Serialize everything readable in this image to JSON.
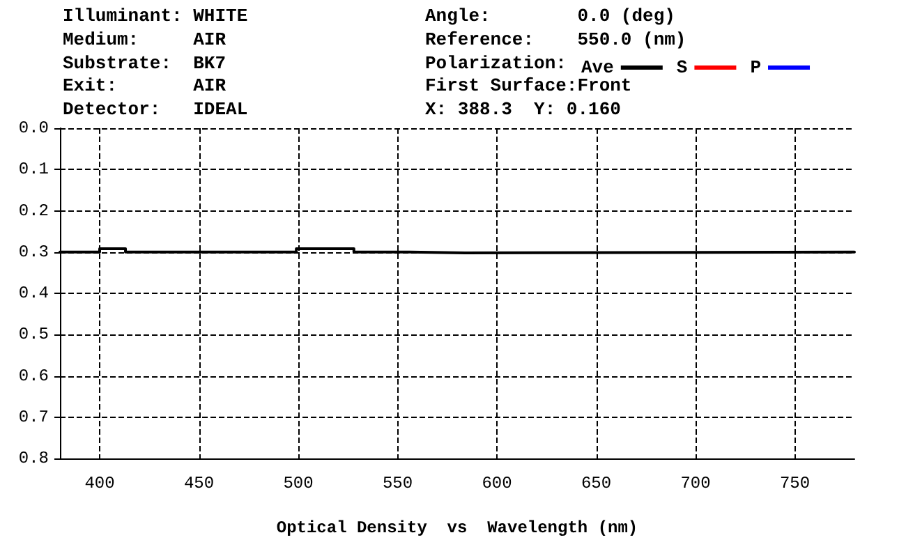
{
  "chart_data": {
    "type": "step",
    "xlabel": "Optical Density  vs  Wavelength (nm)",
    "legend_title": "Polarization:",
    "annotations": [
      "Illuminant: WHITE",
      "Medium:     AIR",
      "Substrate:  BK7",
      "Exit:       AIR",
      "Detector:   IDEAL",
      "Angle:        0.0 (deg)",
      "Reference:    550.0 (nm)",
      "First Surface:Front",
      "X: 388.3  Y: 0.160"
    ],
    "x": [
      380,
      400,
      413,
      499,
      528,
      556,
      584,
      780
    ],
    "series": [
      {
        "name": "Ave",
        "color": "#000000",
        "values": [
          0.3,
          0.292,
          0.3,
          0.292,
          0.3,
          0.302,
          0.3,
          0.3
        ]
      },
      {
        "name": "S",
        "color": "#ff0000",
        "values": [
          null,
          null,
          null,
          null,
          null,
          null,
          null,
          null
        ]
      },
      {
        "name": "P",
        "color": "#0000ff",
        "values": [
          null,
          null,
          null,
          null,
          null,
          null,
          null,
          null
        ]
      }
    ],
    "xlim": [
      380,
      780
    ],
    "xticks": [
      400,
      450,
      500,
      550,
      600,
      650,
      700,
      750
    ],
    "ylim": [
      0.8,
      0.0
    ],
    "yticks": [
      {
        "value": 0,
        "label": "0.0"
      },
      {
        "value": 0.1,
        "label": "0.1"
      },
      {
        "value": 0.2,
        "label": "0.2"
      },
      {
        "value": 0.3,
        "label": "0.3"
      },
      {
        "value": 0.4,
        "label": "0.4"
      },
      {
        "value": 0.5,
        "label": "0.5"
      },
      {
        "value": 0.6,
        "label": "0.6"
      },
      {
        "value": 0.7,
        "label": "0.7"
      },
      {
        "value": 0.8,
        "label": "0.8"
      }
    ],
    "grid": true,
    "legend": "top",
    "marker": "none",
    "line_style": "solid"
  }
}
